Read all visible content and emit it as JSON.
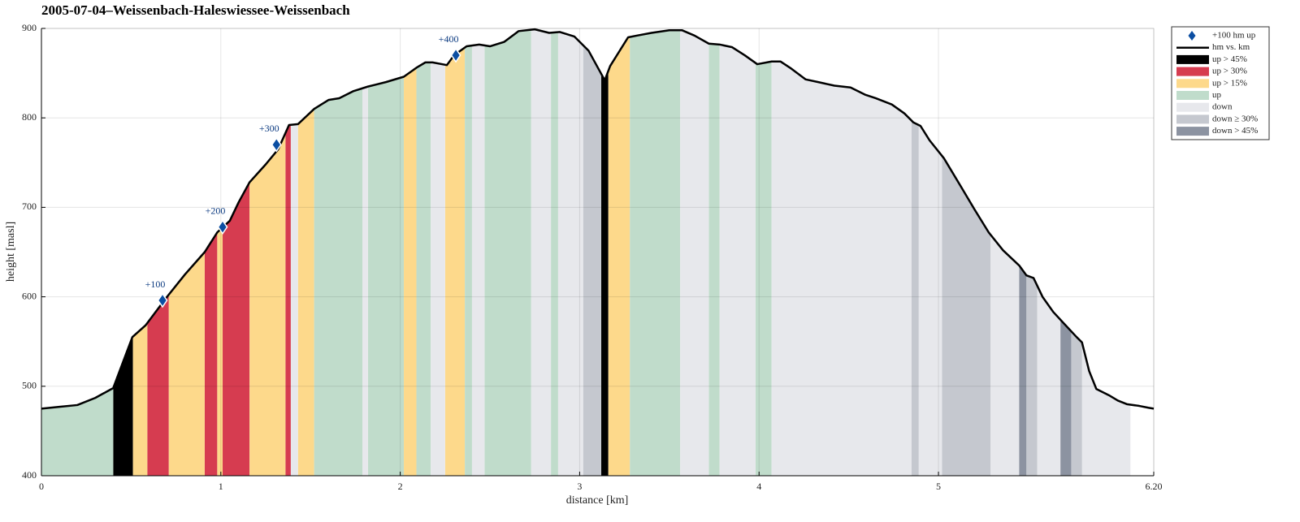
{
  "chart_data": {
    "type": "area",
    "title": "2005-07-04–Weissenbach-Haleswiessee-Weissenbach",
    "xlabel": "distance [km]",
    "ylabel": "height [masl]",
    "xlim": [
      0,
      6.2
    ],
    "ylim": [
      400,
      900
    ],
    "xticks": [
      0,
      1,
      2,
      3,
      4,
      5,
      {
        "value": 6.2,
        "label": "6.20"
      }
    ],
    "yticks": [
      400,
      500,
      600,
      700,
      800,
      900
    ],
    "grid": true,
    "legend_position": "outside right",
    "markers": {
      "name": "+100 hm up",
      "color": "#0b4ea2",
      "x": [
        0.675,
        1.01,
        1.31,
        2.31
      ],
      "y": [
        596,
        678,
        770,
        870
      ],
      "labels": [
        "+100",
        "+200",
        "+300",
        "+400"
      ]
    },
    "profile": {
      "name": "hm vs. km",
      "color": "#000000",
      "x": [
        0,
        0.1,
        0.2,
        0.3,
        0.4,
        0.507,
        0.58,
        0.7,
        0.8,
        0.91,
        0.98,
        1.05,
        1.1,
        1.16,
        1.25,
        1.32,
        1.38,
        1.43,
        1.52,
        1.6,
        1.66,
        1.74,
        1.82,
        1.86,
        1.92,
        2.02,
        2.09,
        2.14,
        2.18,
        2.26,
        2.3,
        2.37,
        2.44,
        2.5,
        2.58,
        2.66,
        2.75,
        2.83,
        2.89,
        2.97,
        3.05,
        3.14,
        3.17,
        3.27,
        3.32,
        3.4,
        3.5,
        3.57,
        3.64,
        3.72,
        3.78,
        3.85,
        3.92,
        3.99,
        4.07,
        4.12,
        4.18,
        4.26,
        4.33,
        4.42,
        4.51,
        4.59,
        4.65,
        4.74,
        4.81,
        4.86,
        4.9,
        4.95,
        5.03,
        5.06,
        5.12,
        5.2,
        5.28,
        5.36,
        5.45,
        5.49,
        5.53,
        5.58,
        5.64,
        5.7,
        5.77,
        5.8,
        5.84,
        5.88,
        5.95,
        6.0,
        6.05,
        6.12,
        6.17,
        6.2
      ],
      "y": [
        475,
        477,
        479,
        487,
        498,
        555,
        568,
        600,
        625,
        650,
        672,
        685,
        706,
        728,
        748,
        765,
        792,
        793,
        810,
        820,
        822,
        830,
        835,
        837,
        840,
        846,
        856,
        862,
        862,
        859,
        870,
        880,
        882,
        880,
        885,
        897,
        899,
        895,
        896,
        891,
        875,
        842,
        858,
        890,
        892,
        895,
        898,
        898,
        892,
        883,
        882,
        879,
        870,
        860,
        863,
        863,
        855,
        843,
        840,
        836,
        834,
        826,
        822,
        815,
        805,
        795,
        791,
        775,
        755,
        745,
        725,
        698,
        672,
        652,
        635,
        624,
        621,
        600,
        583,
        570,
        555,
        549,
        517,
        497,
        490,
        484,
        480,
        478,
        476,
        475
      ]
    },
    "segment_classes": [
      {
        "name": "up > 45%",
        "color": "#000000",
        "intervals": [
          [
            0.4,
            0.51
          ],
          [
            3.12,
            3.16
          ]
        ]
      },
      {
        "name": "up > 30%",
        "color": "#d63c50",
        "intervals": [
          [
            0.59,
            0.71
          ],
          [
            0.91,
            0.98
          ],
          [
            1.01,
            1.16
          ],
          [
            1.36,
            1.39
          ]
        ]
      },
      {
        "name": "up > 15%",
        "color": "#fdd98b",
        "intervals": [
          [
            0.51,
            0.59
          ],
          [
            0.71,
            0.91
          ],
          [
            0.98,
            1.01
          ],
          [
            1.16,
            1.36
          ],
          [
            1.43,
            1.52
          ],
          [
            2.02,
            2.09
          ],
          [
            2.25,
            2.36
          ],
          [
            3.16,
            3.28
          ]
        ]
      },
      {
        "name": "up",
        "color": "#c0dccb",
        "intervals": [
          [
            0,
            0.4
          ],
          [
            1.52,
            1.79
          ],
          [
            1.82,
            2.02
          ],
          [
            2.09,
            2.17
          ],
          [
            2.36,
            2.4
          ],
          [
            2.47,
            2.73
          ],
          [
            2.84,
            2.88
          ],
          [
            3.28,
            3.56
          ],
          [
            3.72,
            3.78
          ],
          [
            3.98,
            4.07
          ]
        ]
      },
      {
        "name": "down",
        "color": "#e7e8ec",
        "intervals": [
          [
            1.39,
            1.43
          ],
          [
            1.79,
            1.82
          ],
          [
            2.17,
            2.25
          ],
          [
            2.4,
            2.47
          ],
          [
            2.73,
            2.84
          ],
          [
            2.88,
            3.02
          ],
          [
            3.56,
            3.72
          ],
          [
            3.78,
            3.98
          ],
          [
            4.07,
            4.85
          ],
          [
            4.89,
            5.02
          ],
          [
            5.29,
            5.45
          ],
          [
            5.55,
            5.68
          ],
          [
            5.8,
            6.07
          ]
        ]
      },
      {
        "name": "down ≥ 30%",
        "color": "#c5c8cf",
        "intervals": [
          [
            3.02,
            3.12
          ],
          [
            4.85,
            4.89
          ],
          [
            5.02,
            5.29
          ],
          [
            5.49,
            5.55
          ],
          [
            5.74,
            5.8
          ]
        ]
      },
      {
        "name": "down > 45%",
        "color": "#8c93a1",
        "intervals": [
          [
            5.45,
            5.49
          ],
          [
            5.68,
            5.74
          ]
        ]
      }
    ]
  }
}
